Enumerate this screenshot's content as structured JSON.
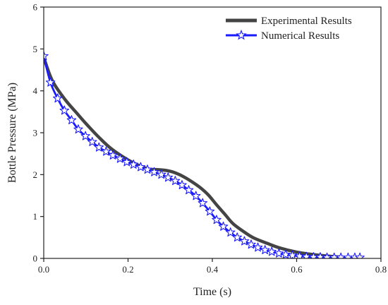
{
  "chart_data": {
    "type": "line",
    "xlabel": "Time (s)",
    "ylabel": "Bottle Pressure (MPa)",
    "xlim": [
      0,
      0.8
    ],
    "ylim": [
      0,
      6
    ],
    "xticks": [
      0.0,
      0.2,
      0.4,
      0.6,
      0.8
    ],
    "xtick_labels": [
      "0.0",
      "0.2",
      "0.4",
      "0.6",
      "0.8"
    ],
    "yticks": [
      0,
      1,
      2,
      3,
      4,
      5,
      6
    ],
    "ytick_labels": [
      "0",
      "1",
      "2",
      "3",
      "4",
      "5",
      "6"
    ],
    "grid": false,
    "legend_position": "top-right",
    "series": [
      {
        "name": "Experimental Results",
        "color": "#444444",
        "marker": "none",
        "x": [
          0.0,
          0.02,
          0.05,
          0.08,
          0.1,
          0.13,
          0.16,
          0.2,
          0.23,
          0.25,
          0.27,
          0.29,
          0.31,
          0.33,
          0.35,
          0.37,
          0.39,
          0.41,
          0.43,
          0.45,
          0.48,
          0.5,
          0.53,
          0.56,
          0.6,
          0.64,
          0.68,
          0.72,
          0.75
        ],
        "y": [
          4.8,
          4.25,
          3.8,
          3.45,
          3.22,
          2.9,
          2.62,
          2.35,
          2.2,
          2.13,
          2.12,
          2.1,
          2.05,
          1.96,
          1.84,
          1.7,
          1.52,
          1.28,
          1.05,
          0.82,
          0.6,
          0.48,
          0.36,
          0.25,
          0.15,
          0.09,
          0.05,
          0.02,
          0.01
        ]
      },
      {
        "name": "Numerical Results",
        "color": "#1a1aff",
        "marker": "star",
        "x": [
          0.0,
          0.016,
          0.033,
          0.049,
          0.066,
          0.082,
          0.099,
          0.115,
          0.131,
          0.148,
          0.164,
          0.181,
          0.197,
          0.213,
          0.23,
          0.246,
          0.262,
          0.279,
          0.295,
          0.312,
          0.328,
          0.344,
          0.361,
          0.377,
          0.394,
          0.41,
          0.426,
          0.443,
          0.459,
          0.476,
          0.492,
          0.508,
          0.525,
          0.541,
          0.558,
          0.574,
          0.59,
          0.607,
          0.623,
          0.64,
          0.656,
          0.672,
          0.689,
          0.705,
          0.722,
          0.738,
          0.75
        ],
        "y": [
          4.83,
          4.2,
          3.82,
          3.53,
          3.3,
          3.08,
          2.92,
          2.78,
          2.65,
          2.55,
          2.46,
          2.38,
          2.3,
          2.24,
          2.18,
          2.12,
          2.06,
          2.0,
          1.93,
          1.85,
          1.75,
          1.63,
          1.49,
          1.32,
          1.12,
          0.92,
          0.76,
          0.62,
          0.5,
          0.41,
          0.33,
          0.26,
          0.2,
          0.16,
          0.12,
          0.09,
          0.07,
          0.05,
          0.04,
          0.03,
          0.03,
          0.02,
          0.02,
          0.02,
          0.02,
          0.02,
          0.02
        ]
      }
    ]
  }
}
